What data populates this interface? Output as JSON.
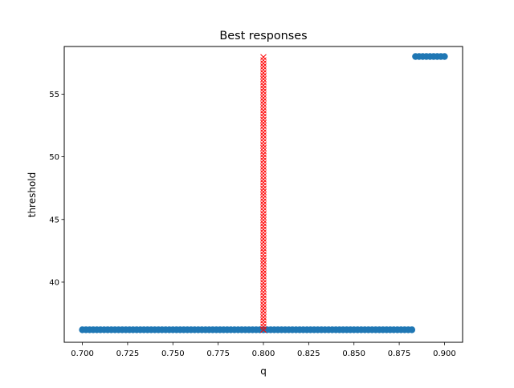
{
  "chart_data": {
    "type": "scatter",
    "title": "Best responses",
    "xlabel": "q",
    "ylabel": "threshold",
    "xlim": [
      0.69,
      0.91
    ],
    "ylim": [
      35.2,
      58.8
    ],
    "grid": false,
    "xticks": [
      {
        "value": 0.7,
        "label": "0.700"
      },
      {
        "value": 0.725,
        "label": "0.725"
      },
      {
        "value": 0.75,
        "label": "0.750"
      },
      {
        "value": 0.775,
        "label": "0.775"
      },
      {
        "value": 0.8,
        "label": "0.800"
      },
      {
        "value": 0.825,
        "label": "0.825"
      },
      {
        "value": 0.85,
        "label": "0.850"
      },
      {
        "value": 0.875,
        "label": "0.875"
      },
      {
        "value": 0.9,
        "label": "0.900"
      }
    ],
    "yticks": [
      {
        "value": 40,
        "label": "40"
      },
      {
        "value": 45,
        "label": "45"
      },
      {
        "value": 50,
        "label": "50"
      },
      {
        "value": 55,
        "label": "55"
      }
    ],
    "series": [
      {
        "marker": "circle",
        "color": "#1f77b4",
        "segments": [
          {
            "x_start": 0.7,
            "x_end": 0.882,
            "x_step": 0.002,
            "y": 36.2
          },
          {
            "x_start": 0.884,
            "x_end": 0.9,
            "x_step": 0.002,
            "y": 58.0
          }
        ]
      },
      {
        "marker": "x",
        "color": "#ff0000",
        "segments": [
          {
            "x": 0.8,
            "y_start": 36.2,
            "y_end": 58.0,
            "y_step": 0.25
          }
        ]
      }
    ]
  }
}
